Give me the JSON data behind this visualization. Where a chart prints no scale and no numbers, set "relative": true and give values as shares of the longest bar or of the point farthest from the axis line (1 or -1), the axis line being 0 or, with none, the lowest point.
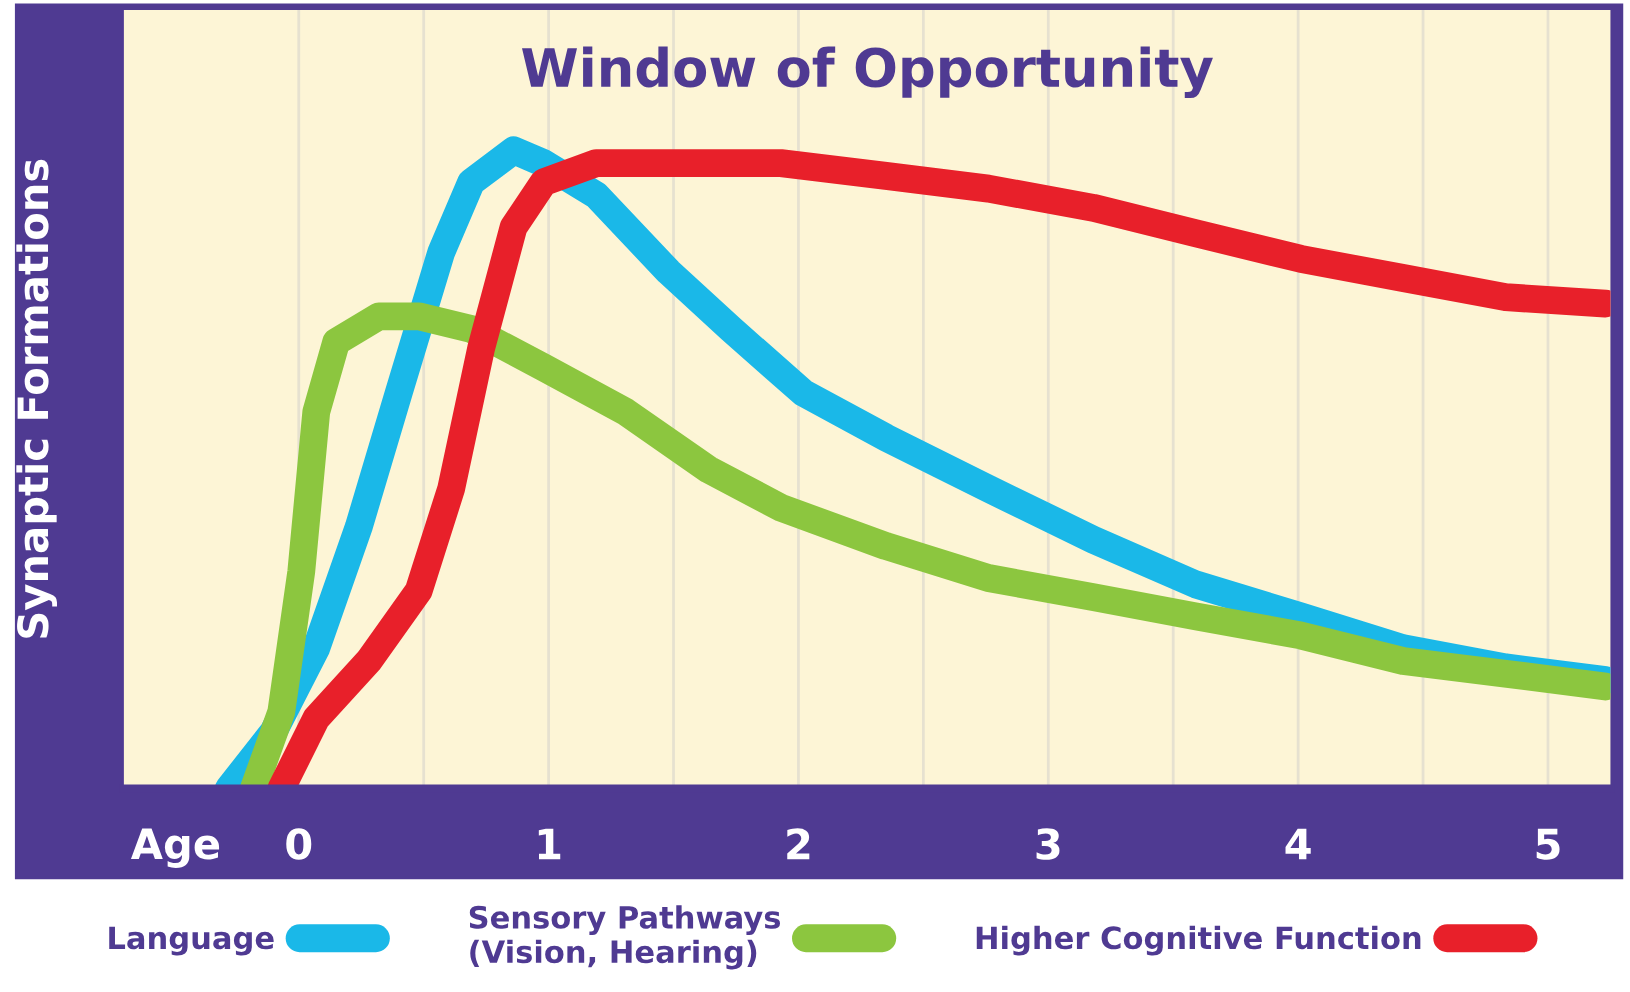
{
  "chart_data": {
    "type": "line",
    "title": "Window of Opportunity",
    "xlabel": "Age",
    "ylabel": "Synaptic Formations",
    "relative": true,
    "xlim": [
      -0.7,
      5.25
    ],
    "xticks": [
      0,
      {
        "value": 0.5,
        "label": null
      },
      1,
      {
        "value": 1.5,
        "label": null
      },
      2,
      {
        "value": 2.5,
        "label": null
      },
      3,
      {
        "value": 3.5,
        "label": null
      },
      4,
      {
        "value": 4.5,
        "label": null
      },
      5
    ],
    "grid": "x",
    "legend": "bottom",
    "line_style": "solid",
    "marker": "none",
    "series": [
      {
        "name": "Language",
        "color": "#1ab8e8",
        "x": [
          -0.28,
          -0.1,
          0.07,
          0.24,
          0.4,
          0.57,
          0.69,
          0.86,
          0.98,
          1.19,
          1.48,
          1.73,
          2.02,
          2.35,
          2.76,
          3.18,
          3.59,
          4.01,
          4.42,
          4.83,
          5.23
        ],
        "values": [
          0,
          0.09,
          0.22,
          0.41,
          0.62,
          0.84,
          0.95,
          1,
          0.98,
          0.93,
          0.81,
          0.72,
          0.62,
          0.55,
          0.47,
          0.39,
          0.32,
          0.27,
          0.22,
          0.19,
          0.17
        ]
      },
      {
        "name": "Sensory Pathways\n(Vision, Hearing)",
        "color": "#8cc63f",
        "x": [
          -0.18,
          -0.07,
          0.01,
          0.07,
          0.15,
          0.32,
          0.48,
          0.69,
          0.98,
          1.31,
          1.64,
          1.93,
          2.35,
          2.76,
          3.18,
          3.59,
          4.01,
          4.42,
          4.83,
          5.23
        ],
        "values": [
          0,
          0.12,
          0.34,
          0.59,
          0.7,
          0.74,
          0.74,
          0.72,
          0.66,
          0.59,
          0.5,
          0.44,
          0.38,
          0.33,
          0.3,
          0.27,
          0.24,
          0.2,
          0.18,
          0.16
        ]
      },
      {
        "name": "Higher Cognitive Function",
        "color": "#e8202a",
        "x": [
          -0.07,
          0.07,
          0.28,
          0.48,
          0.61,
          0.73,
          0.86,
          0.98,
          1.19,
          1.52,
          1.93,
          2.35,
          2.76,
          3.18,
          3.59,
          4.01,
          4.42,
          4.83,
          5.23
        ],
        "values": [
          0,
          0.11,
          0.2,
          0.31,
          0.47,
          0.69,
          0.88,
          0.95,
          0.98,
          0.98,
          0.98,
          0.96,
          0.94,
          0.91,
          0.87,
          0.83,
          0.8,
          0.77,
          0.76
        ]
      }
    ]
  }
}
